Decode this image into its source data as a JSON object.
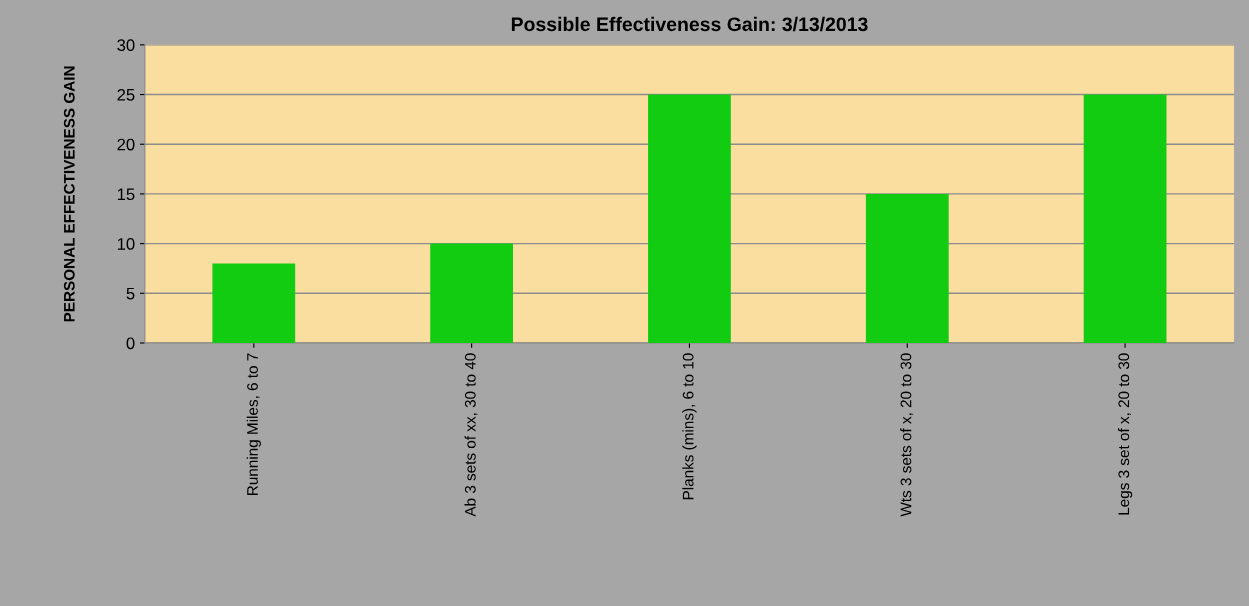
{
  "chart_data": {
    "type": "bar",
    "title": "Possible Effectiveness Gain: 3/13/2013",
    "ylabel": "PERSONAL EFFECTIVENESS GAIN",
    "categories": [
      "Running Miles, 6 to 7",
      "Ab 3 sets of xx, 30 to 40",
      "Planks (mins), 6 to 10",
      "Wts 3 sets of x, 20 to 30",
      "Legs 3 set of x, 20 to 30"
    ],
    "values": [
      8,
      10,
      25,
      15,
      25
    ],
    "color": "#11cc11",
    "ylim": [
      0,
      30
    ],
    "yticks": [
      0,
      5,
      10,
      15,
      20,
      25,
      30
    ],
    "grid": "y"
  }
}
